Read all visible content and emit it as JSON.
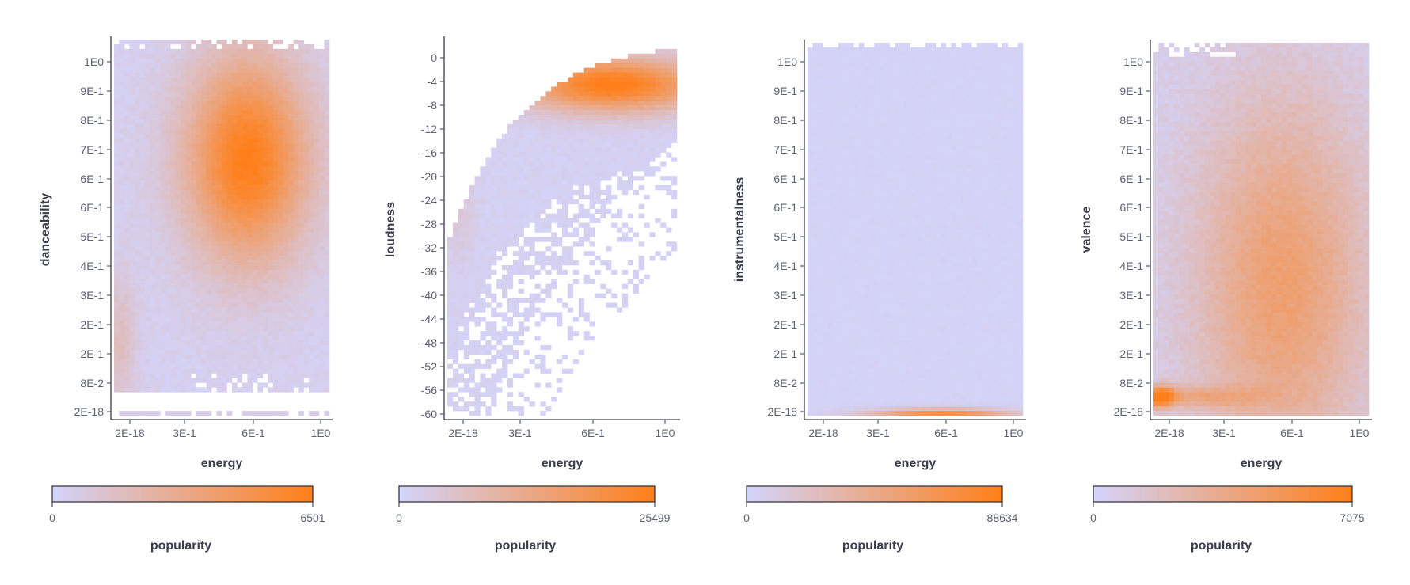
{
  "chart_data": [
    {
      "type": "heatmap",
      "title": "",
      "xlabel": "energy",
      "ylabel": "danceability",
      "x_ticks": [
        "2E-18",
        "3E-1",
        "6E-1",
        "1E0"
      ],
      "y_ticks": [
        "1E0",
        "9E-1",
        "8E-1",
        "7E-1",
        "6E-1",
        "6E-1",
        "5E-1",
        "4E-1",
        "3E-1",
        "2E-1",
        "2E-1",
        "8E-2",
        "2E-18"
      ],
      "color_scale": {
        "label": "popularity",
        "min": 0,
        "max": 6501,
        "low_color": "#d3d4fb",
        "high_color": "#ff7f1a"
      },
      "hotspot": {
        "energy": 0.62,
        "danceability": 0.67,
        "note_value": 6501
      }
    },
    {
      "type": "heatmap",
      "title": "",
      "xlabel": "energy",
      "ylabel": "loudness",
      "x_ticks": [
        "2E-18",
        "3E-1",
        "6E-1",
        "1E0"
      ],
      "y_ticks": [
        "0",
        "-4",
        "-8",
        "-12",
        "-16",
        "-20",
        "-24",
        "-28",
        "-32",
        "-36",
        "-40",
        "-44",
        "-48",
        "-52",
        "-56",
        "-60"
      ],
      "color_scale": {
        "label": "popularity",
        "min": 0,
        "max": 25499,
        "low_color": "#d3d4fb",
        "high_color": "#ff7f1a"
      },
      "hotspot": {
        "energy": 0.72,
        "loudness": -6,
        "note_value": 25499
      }
    },
    {
      "type": "heatmap",
      "title": "",
      "xlabel": "energy",
      "ylabel": "instrumentalness",
      "x_ticks": [
        "2E-18",
        "3E-1",
        "6E-1",
        "1E0"
      ],
      "y_ticks": [
        "1E0",
        "9E-1",
        "8E-1",
        "7E-1",
        "6E-1",
        "6E-1",
        "5E-1",
        "4E-1",
        "3E-1",
        "2E-1",
        "2E-1",
        "8E-2",
        "2E-18"
      ],
      "color_scale": {
        "label": "popularity",
        "min": 0,
        "max": 88634,
        "low_color": "#d3d4fb",
        "high_color": "#ff7f1a"
      },
      "hotspot": {
        "energy": 0.65,
        "instrumentalness": 0,
        "note_value": 88634
      }
    },
    {
      "type": "heatmap",
      "title": "",
      "xlabel": "energy",
      "ylabel": "valence",
      "x_ticks": [
        "2E-18",
        "3E-1",
        "6E-1",
        "1E0"
      ],
      "y_ticks": [
        "1E0",
        "9E-1",
        "8E-1",
        "7E-1",
        "6E-1",
        "6E-1",
        "5E-1",
        "4E-1",
        "3E-1",
        "2E-1",
        "2E-1",
        "8E-2",
        "2E-18"
      ],
      "color_scale": {
        "label": "popularity",
        "min": 0,
        "max": 7075,
        "low_color": "#d3d4fb",
        "high_color": "#ff7f1a"
      },
      "hotspot": {
        "energy": 0.02,
        "valence": 0.05,
        "note_value": 7075
      }
    }
  ]
}
